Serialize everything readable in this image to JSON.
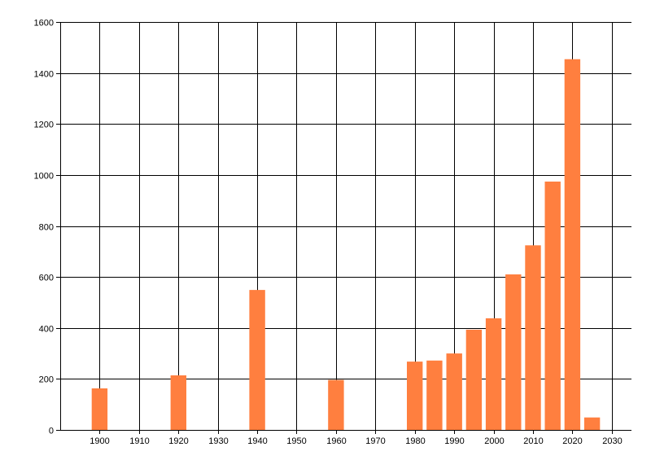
{
  "chart_data": {
    "type": "bar",
    "title": "",
    "xlabel": "",
    "ylabel": "",
    "xlim": [
      1890,
      2035
    ],
    "ylim": [
      0,
      1600
    ],
    "x_ticks": [
      1900,
      1910,
      1920,
      1930,
      1940,
      1950,
      1960,
      1970,
      1980,
      1990,
      2000,
      2010,
      2020,
      2030
    ],
    "y_ticks": [
      0,
      200,
      400,
      600,
      800,
      1000,
      1200,
      1400,
      1600
    ],
    "grid": true,
    "bar_width_years": 4,
    "bar_color": "#FF7F3F",
    "x": [
      1900,
      1920,
      1940,
      1960,
      1980,
      1985,
      1990,
      1995,
      2000,
      2005,
      2010,
      2015,
      2020,
      2025
    ],
    "values": [
      163,
      214,
      549,
      196,
      268,
      272,
      300,
      393,
      438,
      610,
      724,
      974,
      1454,
      49
    ]
  }
}
